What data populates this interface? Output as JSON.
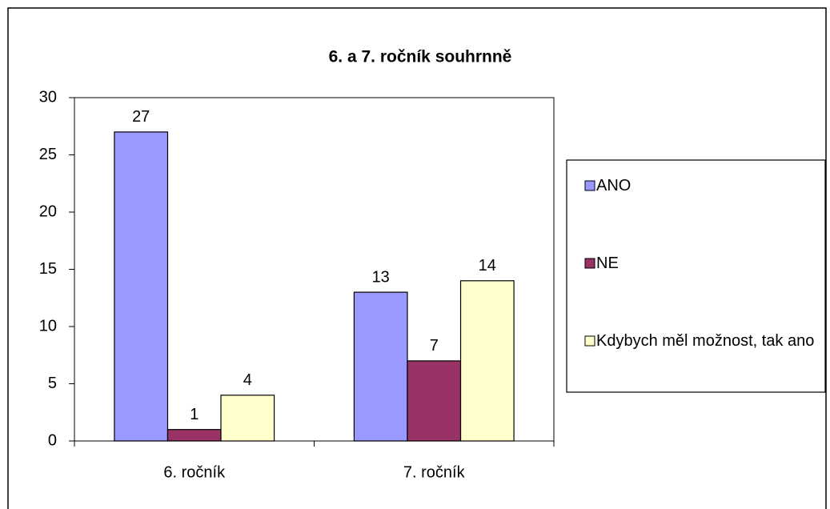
{
  "chart_data": {
    "type": "bar",
    "title": "6. a 7. ročník souhrnně",
    "categories": [
      "6. ročník",
      "7. ročník"
    ],
    "series": [
      {
        "name": "ANO",
        "color": "#9999ff",
        "values": [
          27,
          13
        ]
      },
      {
        "name": "NE",
        "color": "#993366",
        "values": [
          1,
          7
        ]
      },
      {
        "name": "Kdybych měl možnost, tak ano",
        "color": "#ffffcc",
        "values": [
          4,
          14
        ]
      }
    ],
    "ylim": [
      0,
      30
    ],
    "yticks": [
      0,
      5,
      10,
      15,
      20,
      25,
      30
    ],
    "grid": false,
    "legend": "right"
  }
}
